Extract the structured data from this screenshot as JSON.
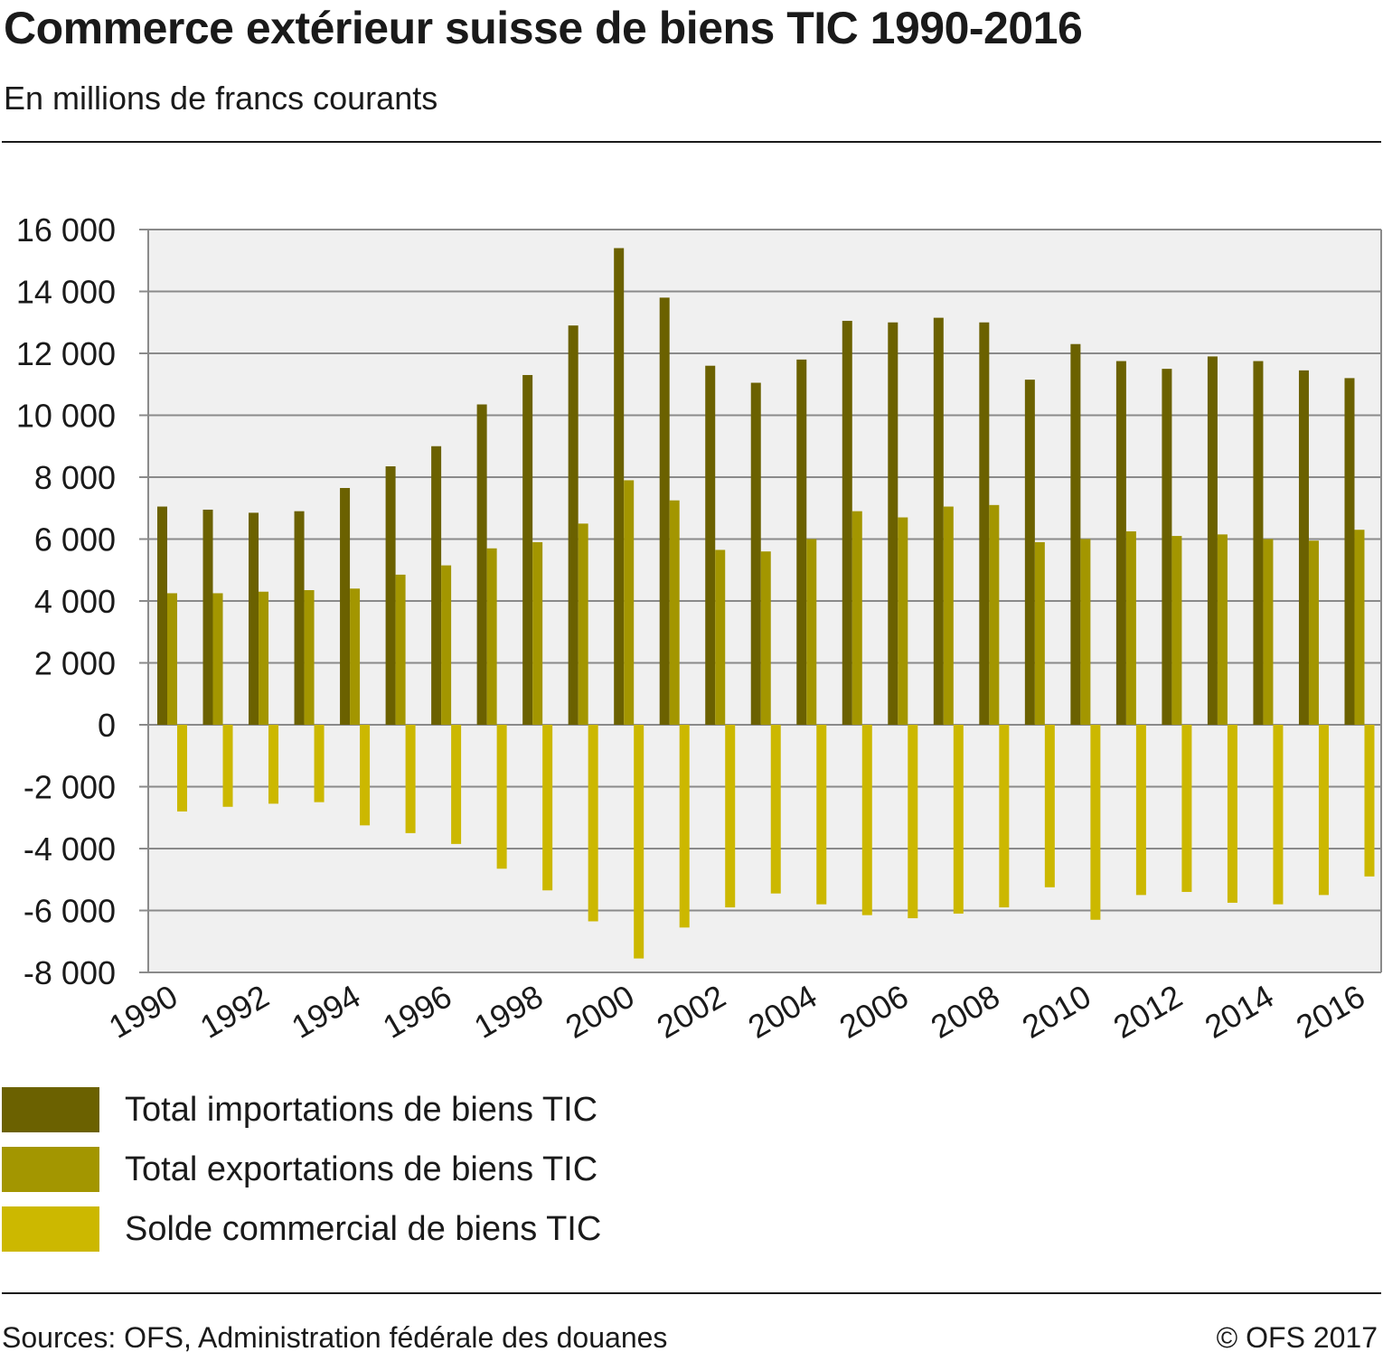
{
  "header": {
    "title": "Commerce extérieur suisse de biens TIC 1990-2016",
    "subtitle": "En millions de francs courants"
  },
  "footer": {
    "source": "Sources: OFS, Administration fédérale des douanes",
    "copyright": "© OFS 2017"
  },
  "chart_data": {
    "type": "bar",
    "title": "Commerce extérieur suisse de biens TIC 1990-2016",
    "subtitle": "En millions de francs courants",
    "xlabel": "",
    "ylabel": "",
    "ylim": [
      -8000,
      16000
    ],
    "yticks": [
      16000,
      14000,
      12000,
      10000,
      8000,
      6000,
      4000,
      2000,
      0,
      -2000,
      -4000,
      -6000,
      -8000
    ],
    "ytick_labels": [
      "16 000",
      "14 000",
      "12 000",
      "10 000",
      "8 000",
      "6 000",
      "4 000",
      "2 000",
      "0",
      "-2 000",
      "-4 000",
      "-6 000",
      "-8 000"
    ],
    "grid": true,
    "legend_position": "bottom",
    "categories": [
      1990,
      1991,
      1992,
      1993,
      1994,
      1995,
      1996,
      1997,
      1998,
      1999,
      2000,
      2001,
      2002,
      2003,
      2004,
      2005,
      2006,
      2007,
      2008,
      2009,
      2010,
      2011,
      2012,
      2013,
      2014,
      2015,
      2016
    ],
    "xtick_labels": [
      "1990",
      "1992",
      "1994",
      "1996",
      "1998",
      "2000",
      "2002",
      "2004",
      "2006",
      "2008",
      "2010",
      "2012",
      "2014",
      "2016"
    ],
    "series": [
      {
        "name": "Total importations de biens TIC",
        "color": "#6b6100",
        "values": [
          7050,
          6950,
          6850,
          6900,
          7650,
          8350,
          9000,
          10350,
          11300,
          12900,
          15400,
          13800,
          11600,
          11050,
          11800,
          13050,
          13000,
          13150,
          13000,
          11150,
          12300,
          11750,
          11500,
          11900,
          11750,
          11450,
          11200
        ]
      },
      {
        "name": "Total exportations de biens TIC",
        "color": "#a39600",
        "values": [
          4250,
          4250,
          4300,
          4350,
          4400,
          4850,
          5150,
          5700,
          5900,
          6500,
          7900,
          7250,
          5650,
          5600,
          6000,
          6900,
          6700,
          7050,
          7100,
          5900,
          6000,
          6250,
          6100,
          6150,
          6000,
          5950,
          6300
        ]
      },
      {
        "name": "Solde commercial de biens TIC",
        "color": "#ccb800",
        "values": [
          -2800,
          -2650,
          -2550,
          -2500,
          -3250,
          -3500,
          -3850,
          -4650,
          -5350,
          -6350,
          -7550,
          -6550,
          -5900,
          -5450,
          -5800,
          -6150,
          -6250,
          -6100,
          -5900,
          -5250,
          -6300,
          -5500,
          -5400,
          -5750,
          -5800,
          -5500,
          -4900
        ]
      }
    ]
  }
}
